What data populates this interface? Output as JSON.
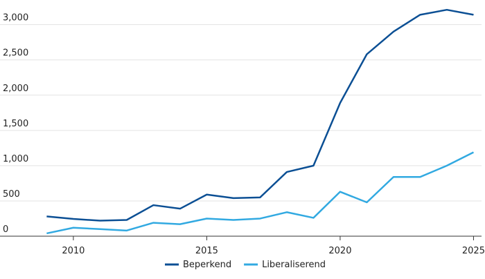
{
  "chart_data": {
    "type": "line",
    "x": [
      2009,
      2010,
      2011,
      2012,
      2013,
      2014,
      2015,
      2016,
      2017,
      2018,
      2019,
      2020,
      2021,
      2022,
      2023,
      2024,
      2025
    ],
    "series": [
      {
        "name": "Beperkend",
        "color": "#0b4f94",
        "values": [
          280,
          245,
          220,
          230,
          440,
          390,
          590,
          540,
          550,
          910,
          1000,
          1890,
          2580,
          2900,
          3140,
          3210,
          3140
        ]
      },
      {
        "name": "Liberaliserend",
        "color": "#31a9e1",
        "values": [
          40,
          120,
          100,
          80,
          190,
          170,
          250,
          230,
          250,
          340,
          260,
          630,
          480,
          840,
          840,
          1000,
          1190
        ]
      }
    ],
    "xlim": [
      2007.25,
      2025.3
    ],
    "xticks": [
      2010,
      2015,
      2020,
      2025
    ],
    "ylim": [
      0,
      3300
    ],
    "yticks": [
      0,
      500,
      {
        "value": 1000,
        "label": "1,000"
      },
      {
        "value": 1500,
        "label": "1,500"
      },
      {
        "value": 2000,
        "label": "2,000"
      },
      {
        "value": 2500,
        "label": "2,500"
      },
      {
        "value": 3000,
        "label": "3,000"
      }
    ],
    "grid": true,
    "legend": "bottom"
  }
}
